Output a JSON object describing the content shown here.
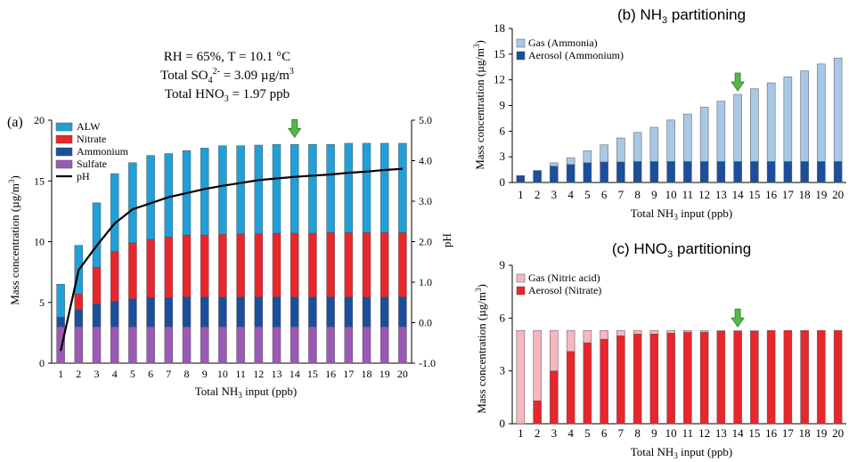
{
  "colors": {
    "alw": "#1fa0d8",
    "nitrate": "#e8262b",
    "ammonium": "#1a4f9c",
    "sulfate": "#9b59b6",
    "gas_ammonia": "#a8c8e6",
    "gas_nitric": "#f4b8be",
    "arrow": "#55b84a",
    "ph": "#000000"
  },
  "condition": {
    "line1": "RH = 65%, T =  10.1 °C",
    "line2_pre": "Total SO",
    "line2_sub": "4",
    "line2_sup": "2-",
    "line2_post": " = 3.09 µg/m",
    "line2_post_sup": "3",
    "line3_pre": "Total HNO",
    "line3_sub": "3",
    "line3_post": " = 1.97 ppb"
  },
  "chart_data": [
    {
      "id": "a",
      "panel_label": "(a)",
      "type": "bar",
      "stacked": true,
      "title": "",
      "xlabel_pre": "Total NH",
      "xlabel_sub": "3",
      "xlabel_post": " input (ppb)",
      "ylabel_pre": "Mass concentration (µg/m",
      "ylabel_sup": "3",
      "ylabel_post": ")",
      "y2label": "pH",
      "ylim": [
        0,
        20
      ],
      "yticks": [
        "0",
        "5",
        "10",
        "15",
        "20"
      ],
      "y2lim": [
        -1.0,
        5.0
      ],
      "y2ticks": [
        "-1.0",
        "0.0",
        "1.0",
        "2.0",
        "3.0",
        "4.0",
        "5.0"
      ],
      "arrow_at": "14",
      "categories": [
        "1",
        "2",
        "3",
        "4",
        "5",
        "6",
        "7",
        "8",
        "9",
        "10",
        "11",
        "12",
        "13",
        "14",
        "15",
        "16",
        "17",
        "18",
        "19",
        "20"
      ],
      "series": [
        {
          "name": "Sulfate",
          "key": "sulfate",
          "values": [
            3.0,
            3.0,
            3.0,
            3.0,
            3.0,
            3.0,
            3.0,
            3.0,
            3.0,
            3.0,
            3.0,
            3.0,
            3.0,
            3.0,
            3.0,
            3.0,
            3.0,
            3.0,
            3.0,
            3.0
          ]
        },
        {
          "name": "Ammonium",
          "key": "ammonium",
          "values": [
            0.8,
            1.4,
            1.9,
            2.1,
            2.3,
            2.4,
            2.4,
            2.45,
            2.45,
            2.45,
            2.45,
            2.45,
            2.45,
            2.45,
            2.45,
            2.45,
            2.45,
            2.45,
            2.45,
            2.45
          ]
        },
        {
          "name": "Nitrate",
          "key": "nitrate",
          "values": [
            0.0,
            1.3,
            3.0,
            4.1,
            4.6,
            4.8,
            5.0,
            5.1,
            5.1,
            5.15,
            5.2,
            5.2,
            5.25,
            5.25,
            5.25,
            5.3,
            5.3,
            5.3,
            5.3,
            5.3
          ]
        },
        {
          "name": "ALW",
          "key": "alw",
          "values": [
            2.7,
            4.0,
            5.3,
            6.4,
            6.6,
            6.9,
            6.85,
            6.95,
            7.15,
            7.3,
            7.25,
            7.3,
            7.3,
            7.3,
            7.3,
            7.25,
            7.35,
            7.35,
            7.35,
            7.35
          ]
        }
      ],
      "line": {
        "name": "pH",
        "values": [
          -0.7,
          1.3,
          1.9,
          2.45,
          2.8,
          2.95,
          3.1,
          3.2,
          3.3,
          3.38,
          3.45,
          3.52,
          3.56,
          3.6,
          3.63,
          3.66,
          3.7,
          3.73,
          3.77,
          3.8
        ]
      },
      "legend": [
        "ALW",
        "Nitrate",
        "Ammonium",
        "Sulfate",
        "pH"
      ]
    },
    {
      "id": "b",
      "type": "bar",
      "stacked": true,
      "title_pre": "(b) NH",
      "title_sub": "3",
      "title_post": " partitioning",
      "xlabel_pre": "Total NH",
      "xlabel_sub": "3",
      "xlabel_post": "  input (ppb)",
      "ylabel_pre": "Mass concentration (µg/m",
      "ylabel_sup": "3",
      "ylabel_post": ")",
      "ylim": [
        0,
        18
      ],
      "yticks": [
        "0",
        "3",
        "6",
        "9",
        "12",
        "15",
        "18"
      ],
      "arrow_at": "14",
      "categories": [
        "1",
        "2",
        "3",
        "4",
        "5",
        "6",
        "7",
        "8",
        "9",
        "10",
        "11",
        "12",
        "13",
        "14",
        "15",
        "16",
        "17",
        "18",
        "19",
        "20"
      ],
      "series": [
        {
          "name": "Aerosol (Ammonium)",
          "key": "ammonium",
          "values": [
            0.8,
            1.4,
            1.9,
            2.1,
            2.3,
            2.4,
            2.4,
            2.45,
            2.45,
            2.45,
            2.45,
            2.45,
            2.45,
            2.45,
            2.45,
            2.45,
            2.45,
            2.45,
            2.45,
            2.45
          ]
        },
        {
          "name": "Gas (Ammonia)",
          "key": "gas_ammonia",
          "values": [
            0.0,
            0.0,
            0.4,
            0.8,
            1.4,
            2.0,
            2.8,
            3.4,
            4.0,
            4.85,
            5.55,
            6.35,
            7.05,
            7.85,
            8.5,
            9.2,
            9.9,
            10.6,
            11.4,
            12.1
          ]
        }
      ],
      "legend": [
        "Gas (Ammonia)",
        "Aerosol (Ammonium)"
      ]
    },
    {
      "id": "c",
      "type": "bar",
      "stacked": true,
      "title_pre": "(c) HNO",
      "title_sub": "3",
      "title_post": " partitioning",
      "xlabel_pre": "Total NH",
      "xlabel_sub": "3",
      "xlabel_post": "  input (ppb)",
      "ylabel_pre": "Mass concentration (µg/m",
      "ylabel_sup": "3",
      "ylabel_post": ")",
      "ylim": [
        0,
        9
      ],
      "yticks": [
        "0",
        "3",
        "6",
        "9"
      ],
      "arrow_at": "14",
      "categories": [
        "1",
        "2",
        "3",
        "4",
        "5",
        "6",
        "7",
        "8",
        "9",
        "10",
        "11",
        "12",
        "13",
        "14",
        "15",
        "16",
        "17",
        "18",
        "19",
        "20"
      ],
      "series": [
        {
          "name": "Aerosol (Nitrate)",
          "key": "nitrate",
          "values": [
            0.0,
            1.3,
            3.0,
            4.1,
            4.6,
            4.8,
            5.0,
            5.1,
            5.1,
            5.15,
            5.2,
            5.2,
            5.25,
            5.25,
            5.25,
            5.3,
            5.3,
            5.3,
            5.3,
            5.3
          ]
        },
        {
          "name": "Gas (Nitric acid)",
          "key": "gas_nitric",
          "values": [
            5.3,
            4.0,
            2.3,
            1.2,
            0.7,
            0.5,
            0.3,
            0.2,
            0.2,
            0.15,
            0.1,
            0.1,
            0.05,
            0.05,
            0.05,
            0.0,
            0.0,
            0.0,
            0.0,
            0.0
          ]
        }
      ],
      "legend": [
        "Gas (Nitric acid)",
        "Aerosol (Nitrate)"
      ]
    }
  ]
}
